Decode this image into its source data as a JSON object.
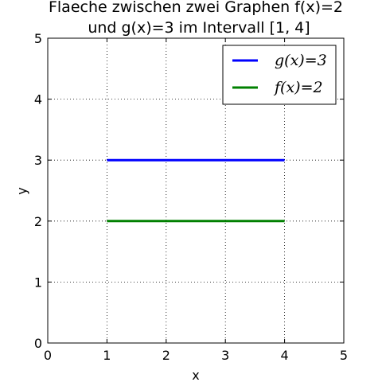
{
  "chart_data": {
    "type": "line",
    "title_line1": "Flaeche zwischen zwei Graphen f(x)=2",
    "title_line2": "und g(x)=3 im Intervall [1, 4]",
    "xlabel": "x",
    "ylabel": "y",
    "xlim": [
      0,
      5
    ],
    "ylim": [
      0,
      5
    ],
    "xticks": [
      "0",
      "1",
      "2",
      "3",
      "4",
      "5"
    ],
    "yticks": [
      "0",
      "1",
      "2",
      "3",
      "4",
      "5"
    ],
    "grid": true,
    "legend_position": "top-right",
    "series": [
      {
        "name": "g(x)=3",
        "color": "#0000ff",
        "x": [
          1,
          4
        ],
        "y": [
          3,
          3
        ]
      },
      {
        "name": "f(x)=2",
        "color": "#008000",
        "x": [
          1,
          4
        ],
        "y": [
          2,
          2
        ]
      }
    ]
  }
}
